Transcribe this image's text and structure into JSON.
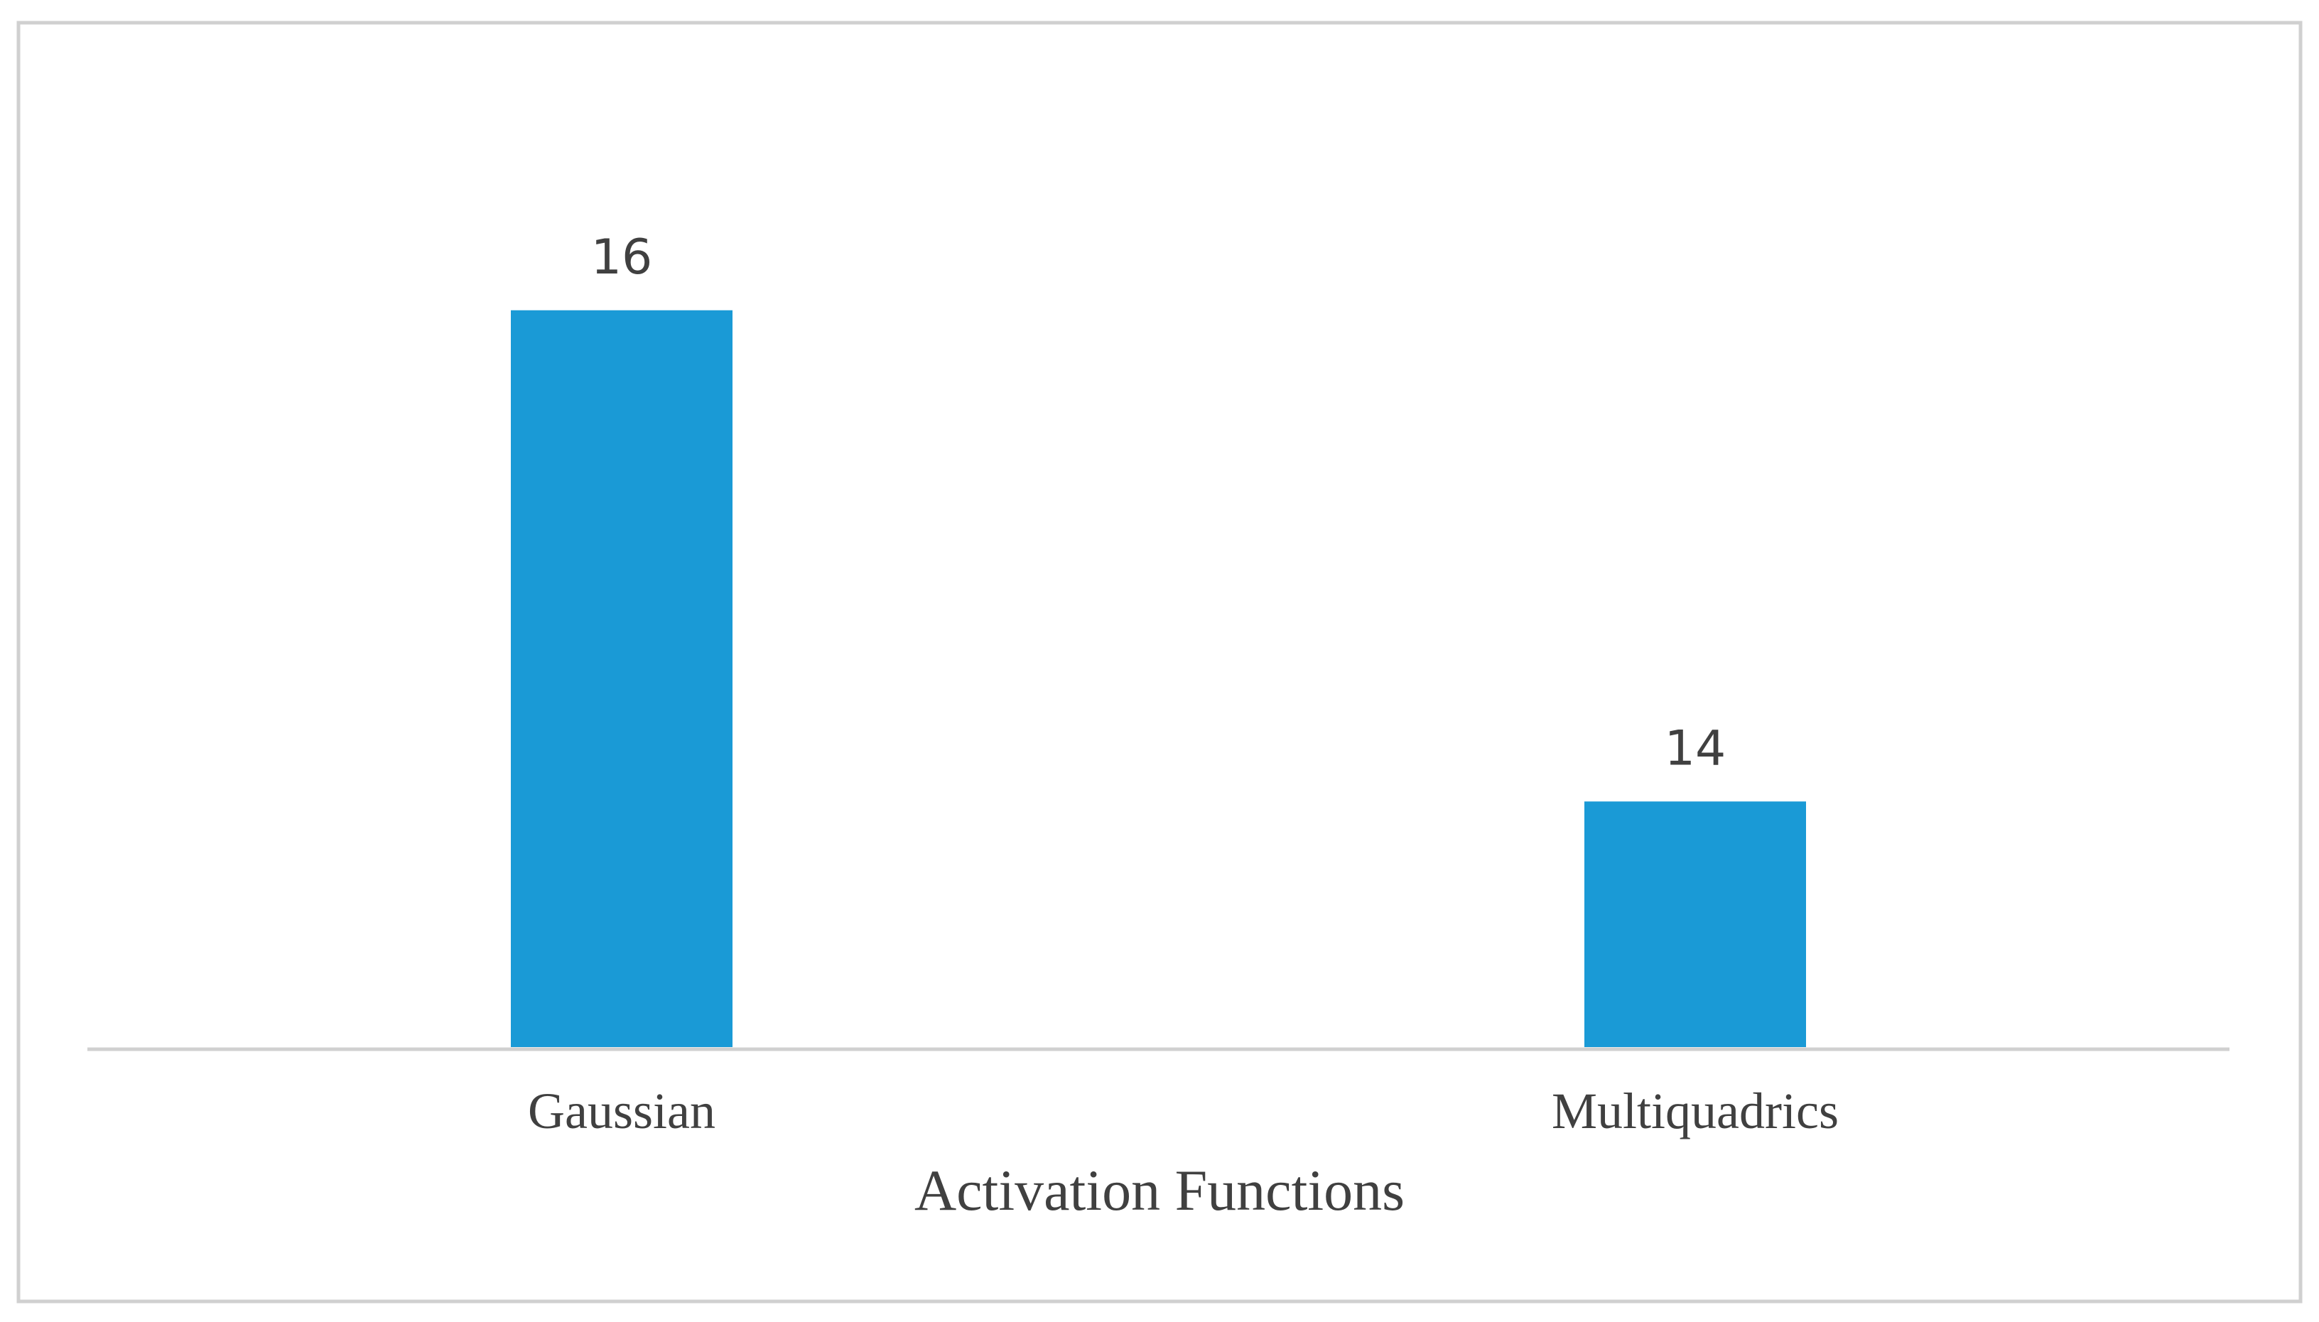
{
  "chart_data": {
    "type": "bar",
    "categories": [
      "Gaussian",
      "Multiquadrics"
    ],
    "values": [
      16,
      14
    ],
    "data_labels": [
      "16",
      "14"
    ],
    "title": "",
    "xlabel": "Activation Functions",
    "ylabel": "",
    "ylim": [
      13,
      17
    ],
    "grid": false,
    "legend": "none",
    "colors": {
      "bar": "#1a9ad6",
      "axis": "#d0d0d0",
      "border": "#d0d0d0",
      "text": "#404040"
    }
  }
}
